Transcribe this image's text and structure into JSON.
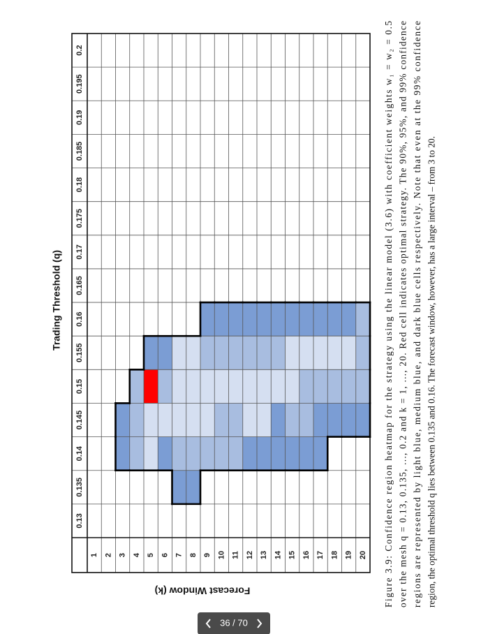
{
  "figure": {
    "y_axis_title": "Trading Threshold (q)",
    "x_axis_title": "Forecast Window (k)",
    "columns": [
      0.13,
      0.135,
      0.14,
      0.145,
      0.15,
      0.155,
      0.16,
      0.165,
      0.17,
      0.175,
      0.18,
      0.185,
      0.19,
      0.195,
      0.2
    ],
    "rows": [
      1,
      2,
      3,
      4,
      5,
      6,
      7,
      8,
      9,
      10,
      11,
      12,
      13,
      14,
      15,
      16,
      17,
      18,
      19,
      20
    ],
    "cells": [
      [
        null,
        null,
        null,
        null,
        null,
        null,
        null,
        null,
        null,
        null,
        null,
        null,
        null,
        null,
        null
      ],
      [
        null,
        null,
        null,
        null,
        null,
        null,
        null,
        null,
        null,
        null,
        null,
        null,
        null,
        null,
        null
      ],
      [
        null,
        null,
        "#7b9dd4",
        "#7b9dd4",
        null,
        null,
        null,
        null,
        null,
        null,
        null,
        null,
        null,
        null,
        null
      ],
      [
        null,
        null,
        "#a8bde0",
        "#a8bde0",
        "#a8bde0",
        null,
        null,
        null,
        null,
        null,
        null,
        null,
        null,
        null,
        null
      ],
      [
        null,
        null,
        "#d5dff1",
        "#d5dff1",
        "#ff0000",
        "#7b9dd4",
        null,
        null,
        null,
        null,
        null,
        null,
        null,
        null,
        null
      ],
      [
        null,
        null,
        "#7b9dd4",
        "#d5dff1",
        "#a8bde0",
        "#7b9dd4",
        null,
        null,
        null,
        null,
        null,
        null,
        null,
        null,
        null
      ],
      [
        null,
        "#7b9dd4",
        "#a8bde0",
        "#d5dff1",
        "#d5dff1",
        "#d5dff1",
        null,
        null,
        null,
        null,
        null,
        null,
        null,
        null,
        null
      ],
      [
        null,
        "#7b9dd4",
        "#a8bde0",
        "#d5dff1",
        "#d5dff1",
        "#d5dff1",
        null,
        null,
        null,
        null,
        null,
        null,
        null,
        null,
        null
      ],
      [
        null,
        null,
        "#a8bde0",
        "#d5dff1",
        "#d5dff1",
        "#a8bde0",
        "#7b9dd4",
        null,
        null,
        null,
        null,
        null,
        null,
        null,
        null
      ],
      [
        null,
        null,
        "#a8bde0",
        "#a8bde0",
        "#d5dff1",
        "#a8bde0",
        "#7b9dd4",
        null,
        null,
        null,
        null,
        null,
        null,
        null,
        null
      ],
      [
        null,
        null,
        "#a8bde0",
        "#a8bde0",
        "#d5dff1",
        "#a8bde0",
        "#7b9dd4",
        null,
        null,
        null,
        null,
        null,
        null,
        null,
        null
      ],
      [
        null,
        null,
        "#7b9dd4",
        "#d5dff1",
        "#d5dff1",
        "#a8bde0",
        "#7b9dd4",
        null,
        null,
        null,
        null,
        null,
        null,
        null,
        null
      ],
      [
        null,
        null,
        "#7b9dd4",
        "#d5dff1",
        "#d5dff1",
        "#a8bde0",
        "#7b9dd4",
        null,
        null,
        null,
        null,
        null,
        null,
        null,
        null
      ],
      [
        null,
        null,
        "#7b9dd4",
        "#7b9dd4",
        "#d5dff1",
        "#a8bde0",
        "#7b9dd4",
        null,
        null,
        null,
        null,
        null,
        null,
        null,
        null
      ],
      [
        null,
        null,
        "#7b9dd4",
        "#a8bde0",
        "#d5dff1",
        "#d5dff1",
        "#7b9dd4",
        null,
        null,
        null,
        null,
        null,
        null,
        null,
        null
      ],
      [
        null,
        null,
        "#7b9dd4",
        "#a8bde0",
        "#a8bde0",
        "#d5dff1",
        "#7b9dd4",
        null,
        null,
        null,
        null,
        null,
        null,
        null,
        null
      ],
      [
        null,
        null,
        "#7b9dd4",
        "#7b9dd4",
        "#a8bde0",
        "#d5dff1",
        "#7b9dd4",
        null,
        null,
        null,
        null,
        null,
        null,
        null,
        null
      ],
      [
        null,
        null,
        null,
        "#7b9dd4",
        "#a8bde0",
        "#d5dff1",
        "#7b9dd4",
        null,
        null,
        null,
        null,
        null,
        null,
        null,
        null
      ],
      [
        null,
        null,
        null,
        "#7b9dd4",
        "#a8bde0",
        "#d5dff1",
        "#7b9dd4",
        null,
        null,
        null,
        null,
        null,
        null,
        null,
        null
      ],
      [
        null,
        null,
        null,
        "#7b9dd4",
        "#a8bde0",
        "#a8bde0",
        "#a8bde0",
        null,
        null,
        null,
        null,
        null,
        null,
        null,
        null
      ]
    ]
  },
  "caption": {
    "lines": [
      "Figure 3.9: Confidence region heatmap for the strategy using the linear model (3.6) with coefficient weights w₁ = w₂ = 0.5",
      "over the mesh q = 0.13, 0.135, ..., 0.2 and k = 1, ..., 20. Red cell indicates optimal strategy. The 90%, 95%, and 99% confidence",
      "regions are represented by light blue, medium blue, and dark blue cells respectively. Note that even at the 99% confidence",
      "region, the optimal threshold q lies between 0.135 and 0.16. The forecast window, however, has a large interval – from 3 to 20."
    ]
  },
  "pager": {
    "label": "36 / 70"
  }
}
